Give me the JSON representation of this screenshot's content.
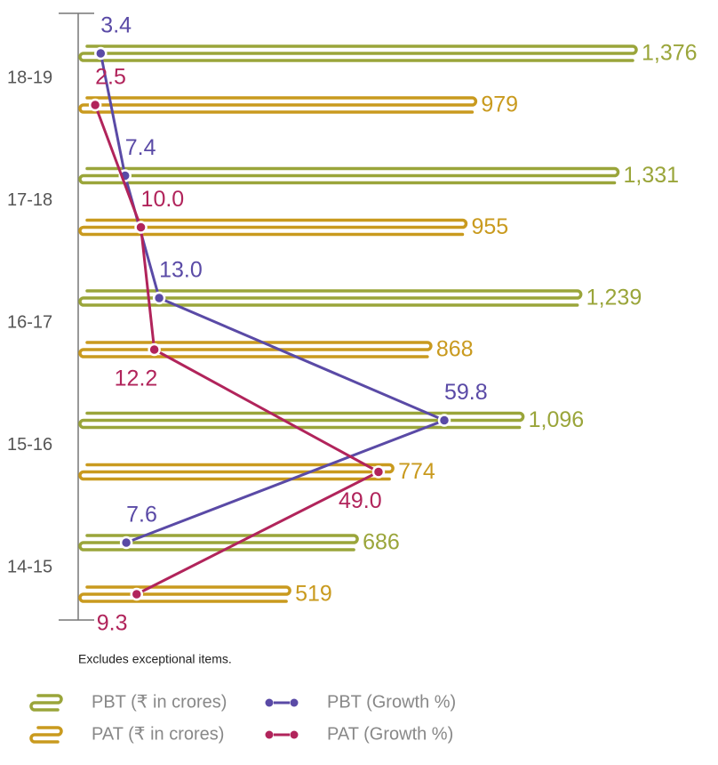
{
  "chart_data": {
    "type": "bar-line",
    "categories": [
      "18-19",
      "17-18",
      "16-17",
      "15-16",
      "14-15"
    ],
    "series": [
      {
        "name": "PBT (₹ in crores)",
        "color": "#9aa53a",
        "values": [
          1376,
          1331,
          1239,
          1096,
          686
        ],
        "value_labels": [
          "1,376",
          "1,331",
          "1,239",
          "1,096",
          "686"
        ]
      },
      {
        "name": "PAT (₹ in crores)",
        "color": "#c99a1e",
        "values": [
          979,
          955,
          868,
          774,
          519
        ],
        "value_labels": [
          "979",
          "955",
          "868",
          "774",
          "519"
        ]
      },
      {
        "name": "PBT (Growth %)",
        "color": "#5a4aa6",
        "type": "line",
        "values": [
          3.4,
          7.4,
          13.0,
          59.8,
          7.6
        ],
        "value_labels": [
          "3.4",
          "7.4",
          "13.0",
          "59.8",
          "7.6"
        ]
      },
      {
        "name": "PAT (Growth %)",
        "color": "#b1245b",
        "type": "line",
        "values": [
          2.5,
          10.0,
          12.2,
          49.0,
          9.3
        ],
        "value_labels": [
          "2.5",
          "10.0",
          "12.2",
          "49.0",
          "9.3"
        ]
      }
    ],
    "note": "Excludes exceptional items."
  }
}
